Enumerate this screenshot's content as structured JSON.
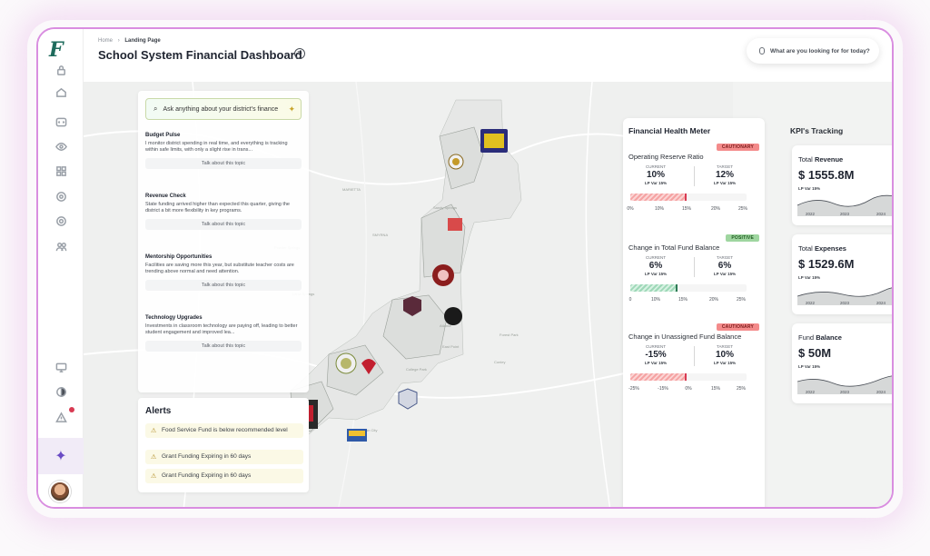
{
  "header": {
    "breadcrumb_home": "Home",
    "breadcrumb_sep": "›",
    "breadcrumb_current": "Landing Page",
    "title": "School System Financial Dashboard",
    "search_placeholder": "What are you looking for for today?"
  },
  "assistant": {
    "ask_placeholder": "Ask anything about your district's finance",
    "topics": [
      {
        "title": "Budget Pulse",
        "text": "I monitor district spending in real time, and everything is tracking within safe limits, with only a slight rise in trans...",
        "action": "Talk about this topic"
      },
      {
        "title": "Revenue Check",
        "text": "State funding arrived higher than expected this quarter, giving the district a bit more flexibility in key programs.",
        "action": "Talk about this topic"
      },
      {
        "title": "Mentorship Opportunities",
        "text": "Facilities are saving more this year, but substitute teacher costs are trending above normal and need attention.",
        "action": "Talk about this topic"
      },
      {
        "title": "Technology Upgrades",
        "text": "Investments in classroom technology are paying off, leading to better student engagement and improved lea...",
        "action": "Talk about this topic"
      }
    ]
  },
  "alerts": {
    "title": "Alerts",
    "items": [
      "Food Service Fund is below recommended level",
      "Grant Funding Expiring in 60 days",
      "Grant Funding Expiring in 60 days"
    ]
  },
  "map": {
    "labels": [
      "MARIETTA",
      "SMYRNA",
      "Sandy Springs",
      "Atlanta",
      "Powder Springs",
      "Lithia Springs",
      "South Fulton",
      "Union City",
      "College Park",
      "East Point",
      "Conley",
      "Forest Park"
    ]
  },
  "health": {
    "title": "Financial Health Meter",
    "meters": [
      {
        "name": "Operating Reserve Ratio",
        "status": "CAUTIONARY",
        "current_label": "CURRENT",
        "current_value": "10%",
        "current_sub": "LP Var 15%",
        "target_label": "TARGET",
        "target_value": "12%",
        "target_sub": "LP Var 15%",
        "ticks": [
          "0%",
          "10%",
          "15%",
          "20%",
          "25%"
        ],
        "fill_fraction": 0.48
      },
      {
        "name": "Change in Total Fund Balance",
        "status": "POSITIVE",
        "current_label": "CURRENT",
        "current_value": "6%",
        "current_sub": "LP Var 15%",
        "target_label": "TARGET",
        "target_value": "6%",
        "target_sub": "LP Var 15%",
        "ticks": [
          "0",
          "10%",
          "15%",
          "20%",
          "25%"
        ],
        "fill_fraction": 0.4
      },
      {
        "name": "Change in Unassigned Fund Balance",
        "status": "CAUTIONARY",
        "current_label": "CURRENT",
        "current_value": "-15%",
        "current_sub": "LP Var 15%",
        "target_label": "TARGET",
        "target_value": "10%",
        "target_sub": "LP Var 15%",
        "ticks": [
          "-25%",
          "-15%",
          "0%",
          "15%",
          "25%"
        ],
        "fill_fraction": 0.48
      }
    ]
  },
  "kpi": {
    "title": "KPI's Tracking",
    "cards": [
      {
        "label_prefix": "Total ",
        "label_bold": "Revenue",
        "value": "$ 1555.8M",
        "sub": "LP Var 15%",
        "years": [
          "2022",
          "2023",
          "2024",
          "2025"
        ]
      },
      {
        "label_prefix": "Total ",
        "label_bold": "Expenses",
        "value": "$ 1529.6M",
        "sub": "LP Var 15%",
        "years": [
          "2022",
          "2023",
          "2024",
          "2025"
        ]
      },
      {
        "label_prefix": "Fund ",
        "label_bold": "Balance",
        "value": "$ 50M",
        "sub": "LP Var 15%",
        "years": [
          "2022",
          "2023",
          "2024",
          "2025"
        ]
      }
    ]
  },
  "colors": {
    "accent": "#d98ee0",
    "caution": "#f48b8b",
    "positive": "#9fd6a0",
    "brand": "#1e6b5c"
  }
}
